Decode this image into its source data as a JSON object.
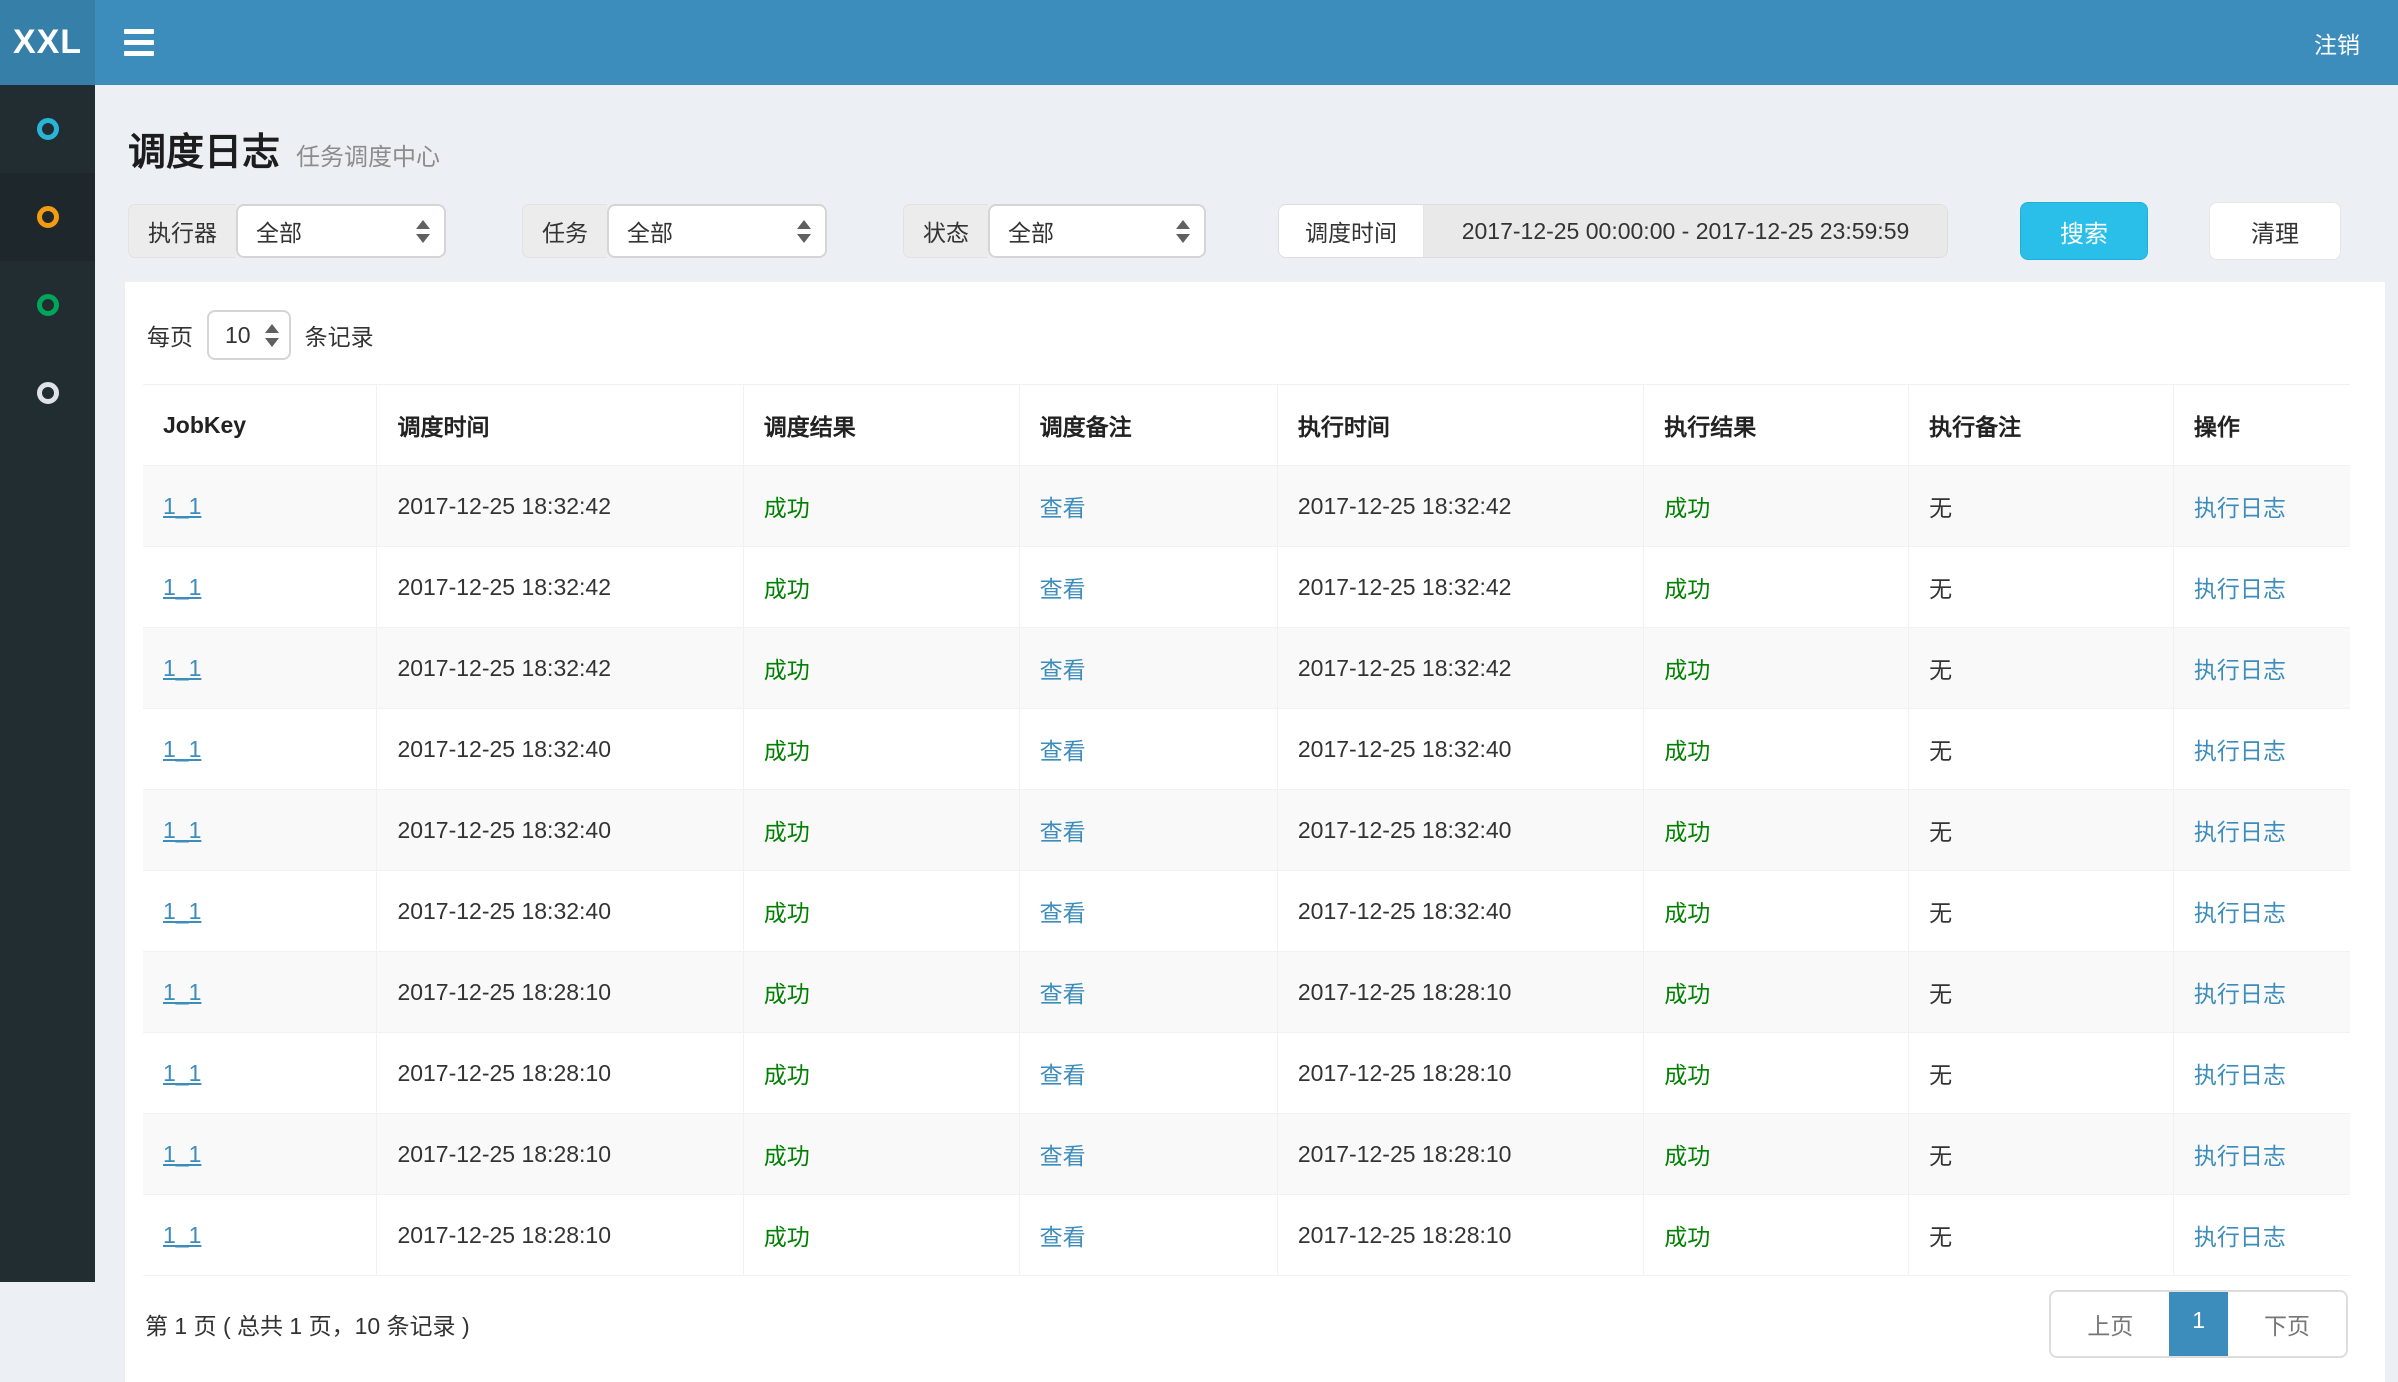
{
  "navbar": {
    "brand": "XXL",
    "menu_icon": "hamburger-icon",
    "logout_label": "注销"
  },
  "sidebar": {
    "items": [
      {
        "icon": "circle-outline-icon",
        "color": "#29b5d8",
        "active": false
      },
      {
        "icon": "circle-outline-icon",
        "color": "#f39c12",
        "active": true
      },
      {
        "icon": "circle-outline-icon",
        "color": "#00a65a",
        "active": false
      },
      {
        "icon": "circle-outline-icon",
        "color": "#dfe3e8",
        "active": false
      }
    ]
  },
  "page_header": {
    "title": "调度日志",
    "subtitle": "任务调度中心"
  },
  "filters": {
    "executor": {
      "label": "执行器",
      "value": "全部"
    },
    "job": {
      "label": "任务",
      "value": "全部"
    },
    "status": {
      "label": "状态",
      "value": "全部"
    },
    "time": {
      "label": "调度时间",
      "value": "2017-12-25 00:00:00 - 2017-12-25 23:59:59"
    },
    "search_label": "搜索",
    "clear_label": "清理"
  },
  "page_size": {
    "prefix": "每页",
    "value": "10",
    "suffix": "条记录"
  },
  "table": {
    "columns": [
      "JobKey",
      "调度时间",
      "调度结果",
      "调度备注",
      "执行时间",
      "执行结果",
      "执行备注",
      "操作"
    ],
    "rows": [
      {
        "job_key": "1_1",
        "trigger_time": "2017-12-25 18:32:42",
        "trigger_result": "成功",
        "trigger_msg": "查看",
        "handle_time": "2017-12-25 18:32:42",
        "handle_result": "成功",
        "handle_msg": "无",
        "action": "执行日志"
      },
      {
        "job_key": "1_1",
        "trigger_time": "2017-12-25 18:32:42",
        "trigger_result": "成功",
        "trigger_msg": "查看",
        "handle_time": "2017-12-25 18:32:42",
        "handle_result": "成功",
        "handle_msg": "无",
        "action": "执行日志"
      },
      {
        "job_key": "1_1",
        "trigger_time": "2017-12-25 18:32:42",
        "trigger_result": "成功",
        "trigger_msg": "查看",
        "handle_time": "2017-12-25 18:32:42",
        "handle_result": "成功",
        "handle_msg": "无",
        "action": "执行日志"
      },
      {
        "job_key": "1_1",
        "trigger_time": "2017-12-25 18:32:40",
        "trigger_result": "成功",
        "trigger_msg": "查看",
        "handle_time": "2017-12-25 18:32:40",
        "handle_result": "成功",
        "handle_msg": "无",
        "action": "执行日志"
      },
      {
        "job_key": "1_1",
        "trigger_time": "2017-12-25 18:32:40",
        "trigger_result": "成功",
        "trigger_msg": "查看",
        "handle_time": "2017-12-25 18:32:40",
        "handle_result": "成功",
        "handle_msg": "无",
        "action": "执行日志"
      },
      {
        "job_key": "1_1",
        "trigger_time": "2017-12-25 18:32:40",
        "trigger_result": "成功",
        "trigger_msg": "查看",
        "handle_time": "2017-12-25 18:32:40",
        "handle_result": "成功",
        "handle_msg": "无",
        "action": "执行日志"
      },
      {
        "job_key": "1_1",
        "trigger_time": "2017-12-25 18:28:10",
        "trigger_result": "成功",
        "trigger_msg": "查看",
        "handle_time": "2017-12-25 18:28:10",
        "handle_result": "成功",
        "handle_msg": "无",
        "action": "执行日志"
      },
      {
        "job_key": "1_1",
        "trigger_time": "2017-12-25 18:28:10",
        "trigger_result": "成功",
        "trigger_msg": "查看",
        "handle_time": "2017-12-25 18:28:10",
        "handle_result": "成功",
        "handle_msg": "无",
        "action": "执行日志"
      },
      {
        "job_key": "1_1",
        "trigger_time": "2017-12-25 18:28:10",
        "trigger_result": "成功",
        "trigger_msg": "查看",
        "handle_time": "2017-12-25 18:28:10",
        "handle_result": "成功",
        "handle_msg": "无",
        "action": "执行日志"
      },
      {
        "job_key": "1_1",
        "trigger_time": "2017-12-25 18:28:10",
        "trigger_result": "成功",
        "trigger_msg": "查看",
        "handle_time": "2017-12-25 18:28:10",
        "handle_result": "成功",
        "handle_msg": "无",
        "action": "执行日志"
      }
    ]
  },
  "pagination": {
    "info": "第 1 页 ( 总共 1 页，10 条记录 )",
    "prev_label": "上页",
    "current_page": "1",
    "next_label": "下页"
  },
  "colors": {
    "navbar_bg": "#3c8dbc",
    "logo_bg": "#367fa9",
    "sidebar_bg": "#222d32",
    "content_bg": "#ecf0f5",
    "link": "#3c8dbc",
    "success_text": "#008000",
    "search_button": "#29bfe8",
    "active_page": "#3c8dbc"
  }
}
